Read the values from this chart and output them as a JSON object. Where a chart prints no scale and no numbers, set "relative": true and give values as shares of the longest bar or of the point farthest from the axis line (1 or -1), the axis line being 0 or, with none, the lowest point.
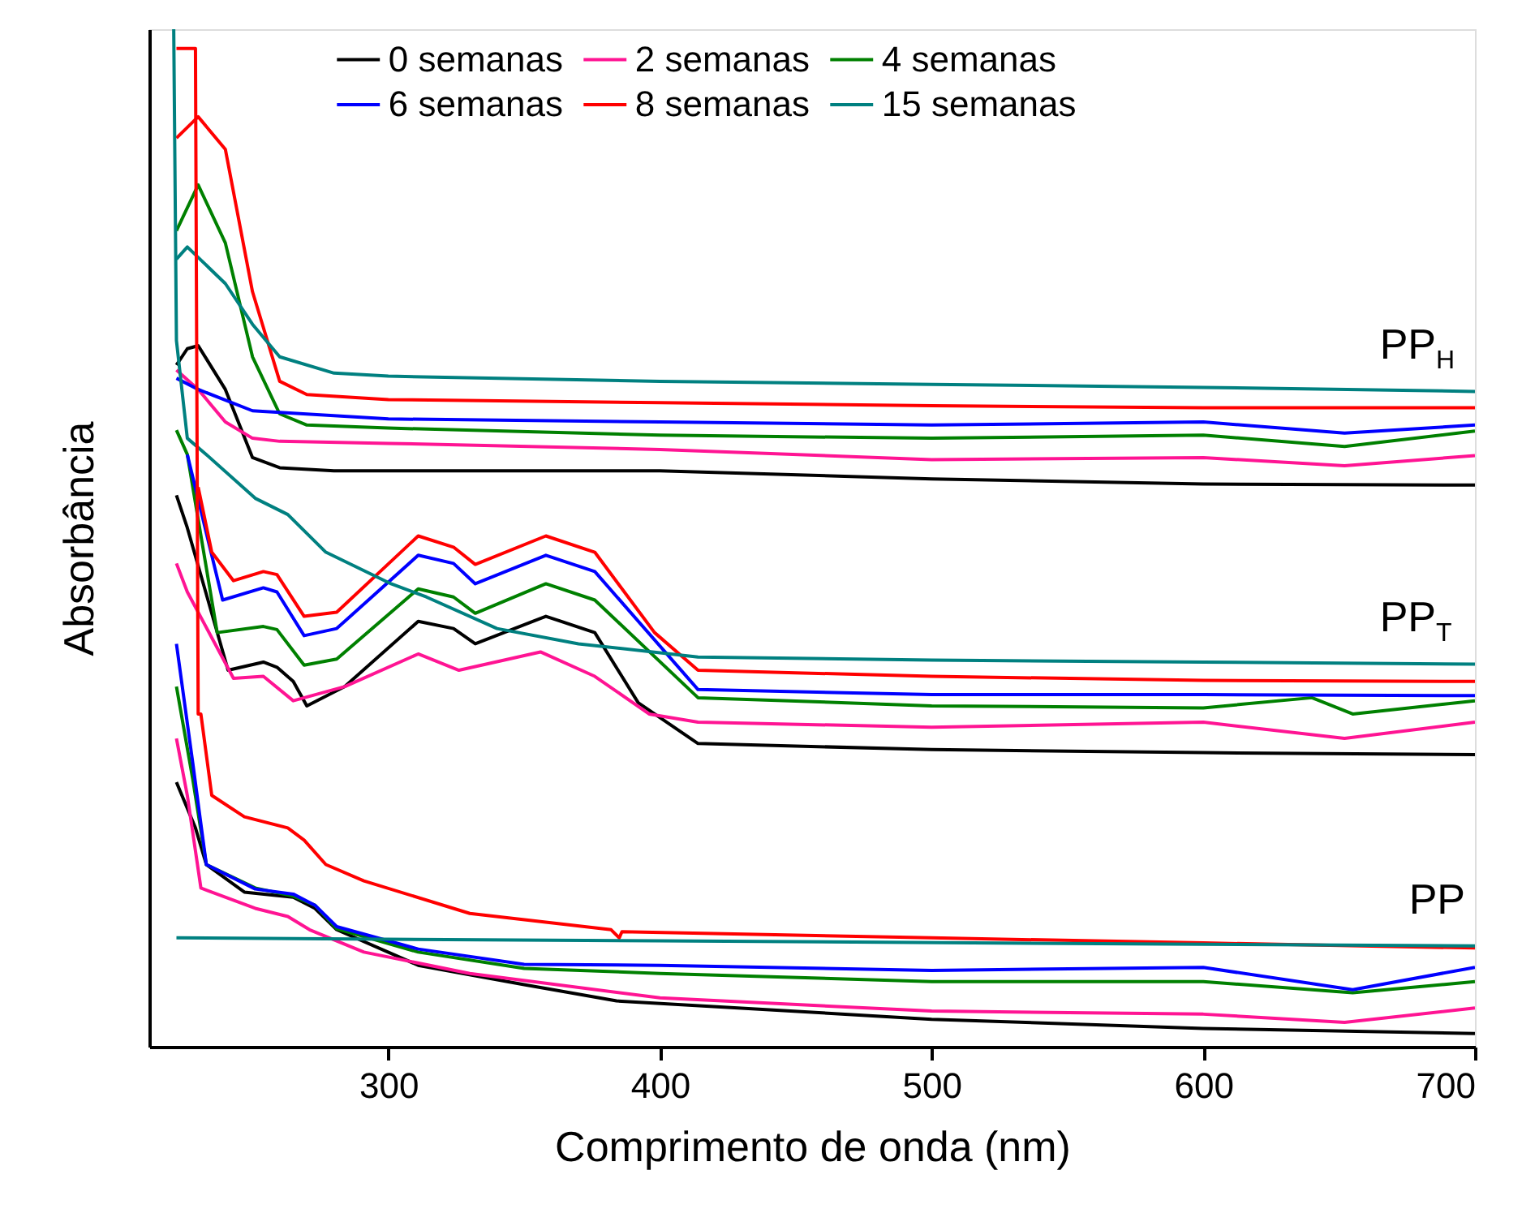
{
  "chart_data": {
    "type": "line",
    "relative": true,
    "xlabel": "Comprimento de onda (nm)",
    "ylabel": "Absorbância",
    "xlim": [
      212,
      700
    ],
    "xticks": [
      300,
      400,
      500,
      600,
      700
    ],
    "legend": "top",
    "grid": false,
    "marker": "none",
    "line_style": "solid",
    "annotations": [
      "PP$_{H}$",
      "PP$_{T}$",
      "PP"
    ],
    "series": [
      {
        "name": "0 semanas",
        "color": "#000000",
        "x": [
          222,
          226,
          230,
          240,
          250,
          260,
          280,
          400,
          500,
          600,
          700
        ],
        "values": [
          0.67,
          0.686,
          0.689,
          0.646,
          0.579,
          0.569,
          0.566,
          0.566,
          0.558,
          0.553,
          0.552
        ]
      },
      {
        "name": "2 semanas",
        "color": "#ff1493",
        "x": [
          222,
          230,
          240,
          250,
          260,
          300,
          400,
          500,
          600,
          652,
          700
        ],
        "values": [
          0.665,
          0.646,
          0.614,
          0.598,
          0.595,
          0.593,
          0.587,
          0.577,
          0.579,
          0.571,
          0.581
        ]
      },
      {
        "name": "4 semanas",
        "color": "#008000",
        "x": [
          222,
          230,
          240,
          250,
          260,
          270,
          300,
          400,
          500,
          600,
          652,
          700
        ],
        "values": [
          0.802,
          0.847,
          0.79,
          0.678,
          0.622,
          0.611,
          0.608,
          0.601,
          0.598,
          0.601,
          0.59,
          0.605
        ]
      },
      {
        "name": "6 semanas",
        "color": "#0000ff",
        "x": [
          222,
          230,
          250,
          300,
          400,
          500,
          600,
          652,
          700
        ],
        "values": [
          0.657,
          0.646,
          0.625,
          0.617,
          0.614,
          0.611,
          0.614,
          0.603,
          0.611
        ]
      },
      {
        "name": "8 semanas",
        "color": "#ff0000",
        "x": [
          222,
          230,
          240,
          250,
          260,
          270,
          300,
          400,
          500,
          600,
          700
        ],
        "values": [
          0.893,
          0.914,
          0.882,
          0.742,
          0.654,
          0.641,
          0.636,
          0.633,
          0.63,
          0.628,
          0.628
        ]
      },
      {
        "name": "15 semanas",
        "color": "#008080",
        "x": [
          222,
          226,
          240,
          250,
          260,
          280,
          300,
          400,
          500,
          600,
          700
        ],
        "values": [
          0.774,
          0.786,
          0.75,
          0.71,
          0.678,
          0.662,
          0.659,
          0.654,
          0.651,
          0.648,
          0.644
        ]
      },
      {
        "color": "#000000",
        "x": [
          222,
          226,
          241,
          254,
          259,
          265,
          270,
          284,
          311,
          324,
          332,
          358,
          376,
          392,
          414,
          500,
          600,
          700
        ],
        "values": [
          0.542,
          0.51,
          0.37,
          0.378,
          0.373,
          0.359,
          0.335,
          0.354,
          0.418,
          0.411,
          0.396,
          0.423,
          0.407,
          0.338,
          0.298,
          0.292,
          0.289,
          0.287
        ]
      },
      {
        "color": "#ff1493",
        "x": [
          222,
          226,
          243,
          254,
          265,
          284,
          311,
          326,
          356,
          376,
          396,
          414,
          500,
          600,
          652,
          700
        ],
        "values": [
          0.475,
          0.447,
          0.362,
          0.364,
          0.34,
          0.354,
          0.386,
          0.37,
          0.388,
          0.364,
          0.327,
          0.319,
          0.314,
          0.319,
          0.303,
          0.319
        ]
      },
      {
        "color": "#008000",
        "x": [
          222,
          226,
          237,
          254,
          259,
          269,
          281,
          311,
          324,
          332,
          358,
          376,
          414,
          500,
          600,
          640,
          655,
          700
        ],
        "values": [
          0.606,
          0.582,
          0.407,
          0.413,
          0.41,
          0.375,
          0.381,
          0.45,
          0.442,
          0.426,
          0.455,
          0.439,
          0.343,
          0.335,
          0.333,
          0.343,
          0.327,
          0.34
        ]
      },
      {
        "color": "#0000ff",
        "x": [
          226,
          239,
          254,
          259,
          269,
          281,
          311,
          324,
          332,
          358,
          376,
          414,
          500,
          600,
          700
        ],
        "values": [
          0.582,
          0.439,
          0.451,
          0.447,
          0.404,
          0.411,
          0.483,
          0.475,
          0.455,
          0.483,
          0.467,
          0.351,
          0.346,
          0.346,
          0.345
        ]
      },
      {
        "color": "#ff0000",
        "x": [
          230,
          235,
          243,
          254,
          259,
          269,
          281,
          311,
          324,
          332,
          358,
          376,
          398,
          414,
          500,
          600,
          700
        ],
        "values": [
          0.55,
          0.486,
          0.458,
          0.467,
          0.464,
          0.423,
          0.427,
          0.502,
          0.491,
          0.474,
          0.502,
          0.486,
          0.407,
          0.37,
          0.364,
          0.36,
          0.359
        ]
      },
      {
        "color": "#008080",
        "x": [
          221,
          222,
          226,
          233,
          251,
          263,
          277,
          301,
          314,
          340,
          370,
          414,
          500,
          600,
          700
        ],
        "values": [
          1.0,
          0.694,
          0.598,
          0.582,
          0.539,
          0.523,
          0.486,
          0.455,
          0.442,
          0.411,
          0.396,
          0.383,
          0.38,
          0.378,
          0.376
        ]
      },
      {
        "color": "#000000",
        "x": [
          222,
          229,
          233,
          247,
          265,
          273,
          281,
          311,
          350,
          384,
          500,
          600,
          700
        ],
        "values": [
          0.26,
          0.215,
          0.179,
          0.152,
          0.147,
          0.136,
          0.115,
          0.08,
          0.061,
          0.045,
          0.027,
          0.018,
          0.013
        ]
      },
      {
        "color": "#ff1493",
        "x": [
          222,
          226,
          231,
          251,
          263,
          271,
          291,
          330,
          400,
          500,
          600,
          652,
          700
        ],
        "values": [
          0.303,
          0.247,
          0.156,
          0.136,
          0.128,
          0.115,
          0.093,
          0.072,
          0.048,
          0.035,
          0.032,
          0.024,
          0.038
        ]
      },
      {
        "color": "#008000",
        "x": [
          222,
          228,
          233,
          251,
          265,
          273,
          281,
          311,
          350,
          400,
          500,
          600,
          655,
          700
        ],
        "values": [
          0.354,
          0.263,
          0.179,
          0.156,
          0.148,
          0.139,
          0.116,
          0.093,
          0.077,
          0.072,
          0.064,
          0.064,
          0.053,
          0.064
        ]
      },
      {
        "color": "#0000ff",
        "x": [
          222,
          228,
          233,
          251,
          265,
          273,
          281,
          311,
          350,
          400,
          500,
          600,
          655,
          700
        ],
        "values": [
          0.396,
          0.279,
          0.179,
          0.155,
          0.15,
          0.139,
          0.118,
          0.096,
          0.081,
          0.08,
          0.075,
          0.078,
          0.056,
          0.078
        ]
      },
      {
        "color": "#ff0000",
        "x": [
          222,
          229,
          230,
          231,
          235,
          247,
          263,
          269,
          277,
          291,
          330,
          382,
          385,
          386,
          500,
          600,
          700
        ],
        "values": [
          0.981,
          0.981,
          0.327,
          0.327,
          0.247,
          0.226,
          0.215,
          0.203,
          0.179,
          0.163,
          0.131,
          0.115,
          0.107,
          0.113,
          0.107,
          0.102,
          0.097
        ]
      },
      {
        "color": "#008080",
        "x": [
          222,
          400,
          700
        ],
        "values": [
          0.107,
          0.104,
          0.099
        ]
      }
    ]
  }
}
